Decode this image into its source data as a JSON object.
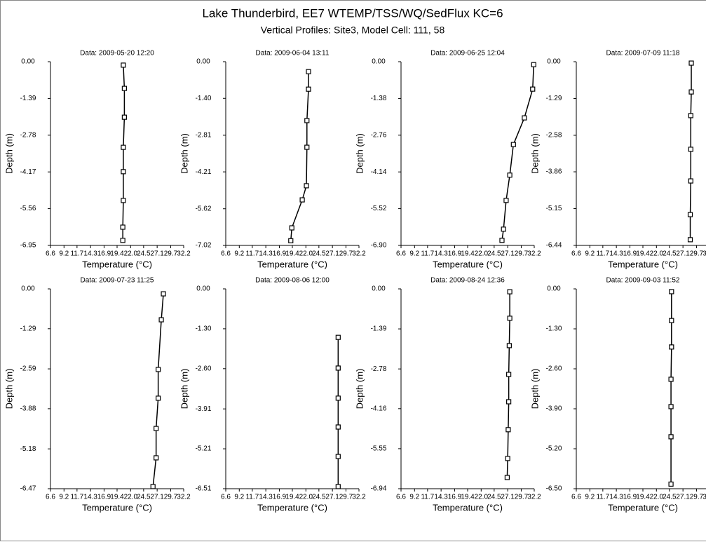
{
  "title": "Lake Thunderbird, EE7 WTEMP/TSS/WQ/SedFlux KC=6",
  "subtitle": "Vertical Profiles: Site3, Model Cell: 111, 58",
  "chart_data": [
    {
      "type": "line",
      "title": "Data: 2009-05-20 12:20",
      "xlabel": "Temperature (°C)",
      "ylabel": "Depth (m)",
      "color": "#000000",
      "marker": "square",
      "x": [
        20.6,
        20.8,
        20.8,
        20.6,
        20.6,
        20.6,
        20.5,
        20.5
      ],
      "values": [
        -0.13,
        -1.01,
        -2.1,
        -3.24,
        -4.16,
        -5.25,
        -6.26,
        -6.76
      ],
      "xlim": [
        6.6,
        32.2
      ],
      "xticks": [
        6.6,
        9.2,
        11.7,
        14.3,
        16.9,
        19.4,
        {
          "value": 22,
          "label": "22.0"
        },
        24.5,
        27.1,
        29.7,
        32.2
      ],
      "ylim": [
        -6.95,
        0
      ],
      "yticks": [
        {
          "value": 0,
          "label": "0.00"
        },
        -1.39,
        -2.78,
        -4.17,
        -5.56,
        -6.95
      ]
    },
    {
      "type": "line",
      "title": "Data: 2009-06-04 13:11",
      "xlabel": "Temperature (°C)",
      "ylabel": "Depth (m)",
      "color": "#000000",
      "marker": "square",
      "x": [
        22.5,
        22.5,
        22.2,
        22.2,
        22.1,
        21.3,
        19.3,
        19.1
      ],
      "values": [
        -0.38,
        -1.05,
        -2.25,
        -3.27,
        -4.74,
        -5.28,
        -6.35,
        -6.84
      ],
      "xlim": [
        6.6,
        32.2
      ],
      "xticks": [
        6.6,
        9.2,
        11.7,
        14.3,
        16.9,
        19.4,
        {
          "value": 22,
          "label": "22.0"
        },
        24.5,
        27.1,
        29.7,
        32.2
      ],
      "ylim": [
        -7.02,
        0
      ],
      "yticks": [
        {
          "value": 0,
          "label": "0.00"
        },
        {
          "value": -1.4,
          "label": "-1.40"
        },
        -2.81,
        -4.21,
        -5.62,
        -7.02
      ]
    },
    {
      "type": "line",
      "title": "Data: 2009-06-25 12:04",
      "xlabel": "Temperature (°C)",
      "ylabel": "Depth (m)",
      "color": "#000000",
      "marker": "square",
      "x": [
        32.1,
        31.9,
        30.3,
        28.2,
        27.5,
        26.8,
        26.3,
        26.0
      ],
      "values": [
        -0.11,
        -1.03,
        -2.11,
        -3.11,
        -4.26,
        -5.21,
        -6.29,
        -6.71
      ],
      "xlim": [
        6.6,
        32.2
      ],
      "xticks": [
        6.6,
        9.2,
        11.7,
        14.3,
        16.9,
        19.4,
        {
          "value": 22,
          "label": "22.0"
        },
        24.5,
        27.1,
        29.7,
        32.2
      ],
      "ylim": [
        -6.9,
        0
      ],
      "yticks": [
        {
          "value": 0,
          "label": "0.00"
        },
        -1.38,
        -2.76,
        -4.14,
        -5.52,
        {
          "value": -6.9,
          "label": "-6.90"
        }
      ]
    },
    {
      "type": "line",
      "title": "Data: 2009-07-09 11:18",
      "xlabel": "Temperature (°C)",
      "ylabel": "Depth (m)",
      "color": "#000000",
      "marker": "square",
      "x": [
        28.7,
        28.7,
        28.6,
        28.6,
        28.6,
        28.5,
        28.5
      ],
      "values": [
        -0.05,
        -1.06,
        -1.89,
        -3.07,
        -4.18,
        -5.36,
        -6.24
      ],
      "xlim": [
        6.6,
        32.2
      ],
      "xticks": [
        6.6,
        9.2,
        11.7,
        14.3,
        16.9,
        19.4,
        {
          "value": 22,
          "label": "22.0"
        },
        24.5,
        27.1,
        29.7,
        32.2
      ],
      "ylim": [
        -6.44,
        0
      ],
      "yticks": [
        {
          "value": 0,
          "label": "0.00"
        },
        -1.29,
        -2.58,
        -3.86,
        -5.15,
        -6.44
      ]
    },
    {
      "type": "line",
      "title": "Data: 2009-07-23 11:25",
      "xlabel": "Temperature (°C)",
      "ylabel": "Depth (m)",
      "color": "#000000",
      "marker": "square",
      "x": [
        28.3,
        27.9,
        27.3,
        27.3,
        26.9,
        26.9,
        26.3
      ],
      "values": [
        -0.16,
        -1.0,
        -2.61,
        -3.54,
        -4.52,
        -5.47,
        -6.4
      ],
      "xlim": [
        6.6,
        32.2
      ],
      "xticks": [
        6.6,
        9.2,
        11.7,
        14.3,
        16.9,
        19.4,
        {
          "value": 22,
          "label": "22.0"
        },
        24.5,
        27.1,
        29.7,
        32.2
      ],
      "ylim": [
        -6.47,
        0
      ],
      "yticks": [
        {
          "value": 0,
          "label": "0.00"
        },
        -1.29,
        -2.59,
        -3.88,
        -5.18,
        -6.47
      ]
    },
    {
      "type": "line",
      "title": "Data: 2009-08-06 12:00",
      "xlabel": "Temperature (°C)",
      "ylabel": "Depth (m)",
      "color": "#000000",
      "marker": "square",
      "x": [
        28.2,
        28.2,
        28.2,
        28.2,
        28.2,
        28.2
      ],
      "values": [
        -1.58,
        -2.58,
        -3.56,
        -4.5,
        -5.46,
        -6.44
      ],
      "xlim": [
        6.6,
        32.2
      ],
      "xticks": [
        6.6,
        9.2,
        11.7,
        14.3,
        16.9,
        19.4,
        {
          "value": 22,
          "label": "22.0"
        },
        24.5,
        27.1,
        29.7,
        32.2
      ],
      "ylim": [
        -6.51,
        0
      ],
      "yticks": [
        {
          "value": 0,
          "label": "0.00"
        },
        {
          "value": -1.3,
          "label": "-1.30"
        },
        {
          "value": -2.6,
          "label": "-2.60"
        },
        -3.91,
        -5.21,
        -6.51
      ]
    },
    {
      "type": "line",
      "title": "Data: 2009-08-24 12:36",
      "xlabel": "Temperature (°C)",
      "ylabel": "Depth (m)",
      "color": "#000000",
      "marker": "square",
      "x": [
        27.5,
        27.5,
        27.4,
        27.3,
        27.3,
        27.2,
        27.1,
        27.0
      ],
      "values": [
        -0.1,
        -1.02,
        -1.97,
        -2.97,
        -3.92,
        -4.89,
        -5.89,
        -6.55
      ],
      "xlim": [
        6.6,
        32.2
      ],
      "xticks": [
        6.6,
        9.2,
        11.7,
        14.3,
        16.9,
        19.4,
        {
          "value": 22,
          "label": "22.0"
        },
        24.5,
        27.1,
        29.7,
        32.2
      ],
      "ylim": [
        -6.94,
        0
      ],
      "yticks": [
        {
          "value": 0,
          "label": "0.00"
        },
        -1.39,
        -2.78,
        -4.16,
        -5.55,
        -6.94
      ]
    },
    {
      "type": "line",
      "title": "Data: 2009-09-03 11:52",
      "xlabel": "Temperature (°C)",
      "ylabel": "Depth (m)",
      "color": "#000000",
      "marker": "square",
      "x": [
        24.9,
        24.9,
        24.9,
        24.8,
        24.8,
        24.8,
        24.8
      ],
      "values": [
        -0.09,
        -1.03,
        -1.89,
        -2.94,
        -3.83,
        -4.81,
        -6.35
      ],
      "xlim": [
        6.6,
        32.2
      ],
      "xticks": [
        6.6,
        9.2,
        11.7,
        14.3,
        16.9,
        19.4,
        {
          "value": 22,
          "label": "22.0"
        },
        24.5,
        27.1,
        29.7,
        32.2
      ],
      "ylim": [
        -6.5,
        0
      ],
      "yticks": [
        {
          "value": 0,
          "label": "0.00"
        },
        {
          "value": -1.3,
          "label": "-1.30"
        },
        {
          "value": -2.6,
          "label": "-2.60"
        },
        {
          "value": -3.9,
          "label": "-3.90"
        },
        {
          "value": -5.2,
          "label": "-5.20"
        },
        {
          "value": -6.5,
          "label": "-6.50"
        }
      ]
    }
  ]
}
